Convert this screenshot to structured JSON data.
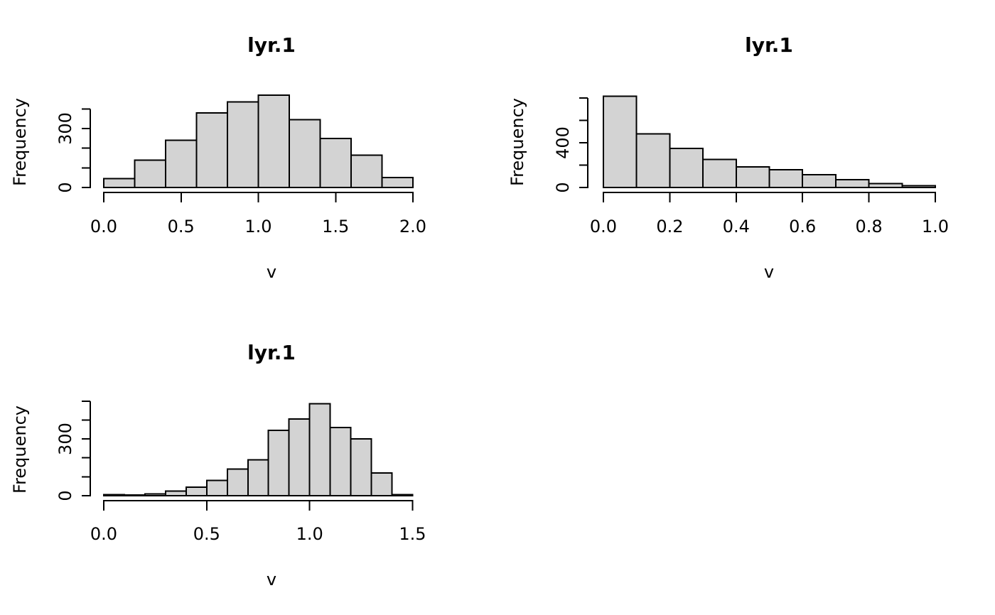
{
  "page": {
    "background": "#ffffff"
  },
  "chart_data": [
    {
      "type": "bar",
      "subtype": "histogram",
      "panel": "top-left",
      "title": "lyr.1",
      "xlabel": "v",
      "ylabel": "Frequency",
      "bin_start": 0.0,
      "bin_width": 0.2,
      "counts": [
        45,
        140,
        240,
        380,
        435,
        470,
        345,
        250,
        165,
        50
      ],
      "xlim": [
        0.0,
        2.0
      ],
      "x_ticks": [
        0.0,
        0.5,
        1.0,
        1.5,
        2.0
      ],
      "x_tick_labels": [
        "0.0",
        "0.5",
        "1.0",
        "1.5",
        "2.0"
      ],
      "y_ticks": [
        0,
        100,
        200,
        300,
        400
      ],
      "y_tick_labels": [
        "0",
        "",
        "",
        "300",
        ""
      ],
      "grid": false,
      "legend": "none",
      "bar_fill": "#d3d3d3",
      "bar_border": "#000000",
      "axis_color": "#000000"
    },
    {
      "type": "bar",
      "subtype": "histogram",
      "panel": "top-right",
      "title": "lyr.1",
      "xlabel": "v",
      "ylabel": "Frequency",
      "bin_start": 0.0,
      "bin_width": 0.1,
      "counts": [
        815,
        480,
        350,
        250,
        185,
        160,
        115,
        70,
        35,
        15
      ],
      "xlim": [
        0.0,
        1.0
      ],
      "x_ticks": [
        0.0,
        0.2,
        0.4,
        0.6,
        0.8,
        1.0
      ],
      "x_tick_labels": [
        "0.0",
        "0.2",
        "0.4",
        "0.6",
        "0.8",
        "1.0"
      ],
      "y_ticks": [
        0,
        200,
        400,
        600,
        800
      ],
      "y_tick_labels": [
        "0",
        "",
        "400",
        "",
        ""
      ],
      "grid": false,
      "legend": "none",
      "bar_fill": "#d3d3d3",
      "bar_border": "#000000",
      "axis_color": "#000000"
    },
    {
      "type": "bar",
      "subtype": "histogram",
      "panel": "bottom-left",
      "title": "lyr.1",
      "xlabel": "v",
      "ylabel": "Frequency",
      "bin_start": 0.0,
      "bin_width": 0.1,
      "counts": [
        5,
        3,
        10,
        25,
        45,
        80,
        140,
        190,
        345,
        405,
        485,
        360,
        300,
        120,
        5
      ],
      "xlim": [
        0.0,
        1.5
      ],
      "x_ticks": [
        0.0,
        0.5,
        1.0,
        1.5
      ],
      "x_tick_labels": [
        "0.0",
        "0.5",
        "1.0",
        "1.5"
      ],
      "y_ticks": [
        0,
        100,
        200,
        300,
        400,
        500
      ],
      "y_tick_labels": [
        "0",
        "",
        "",
        "300",
        "",
        ""
      ],
      "grid": false,
      "legend": "none",
      "bar_fill": "#d3d3d3",
      "bar_border": "#000000",
      "axis_color": "#000000"
    }
  ]
}
